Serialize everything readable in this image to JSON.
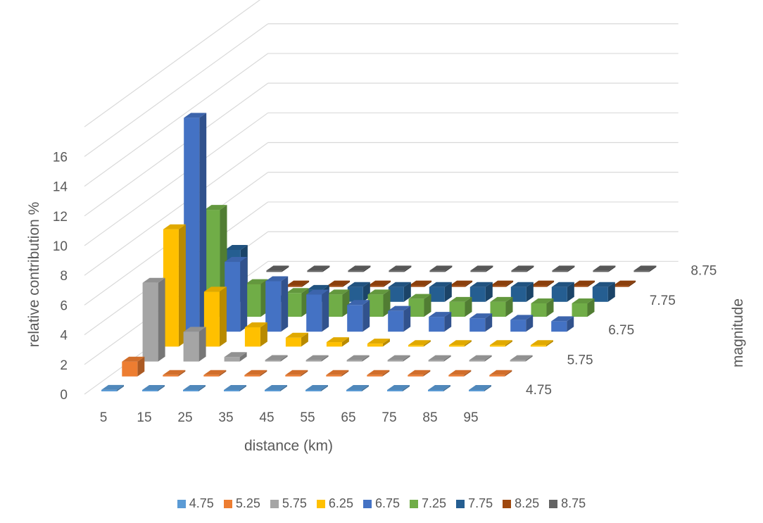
{
  "chart_data": {
    "type": "bar3d",
    "xlabel": "distance (km)",
    "ylabel": "relative contribution %",
    "zlabel": "magnitude",
    "x_categories": [
      "5",
      "15",
      "25",
      "35",
      "45",
      "55",
      "65",
      "75",
      "85",
      "95"
    ],
    "y_ticks": [
      "0",
      "2",
      "4",
      "6",
      "8",
      "10",
      "12",
      "14",
      "16"
    ],
    "ylim": [
      0,
      16
    ],
    "depth_tick_labels": [
      "4.75",
      "5.75",
      "6.75",
      "7.75",
      "8.75"
    ],
    "series": [
      {
        "name": "4.75",
        "color": "#5b9bd5",
        "values": [
          0.1,
          0.05,
          0.05,
          0.05,
          0.05,
          0.05,
          0.05,
          0.05,
          0.05,
          0.05
        ]
      },
      {
        "name": "5.25",
        "color": "#ed7d31",
        "values": [
          1.0,
          0.05,
          0.05,
          0.05,
          0.05,
          0.05,
          0.05,
          0.05,
          0.05,
          0.05
        ]
      },
      {
        "name": "5.75",
        "color": "#a5a5a5",
        "values": [
          5.3,
          2.0,
          0.3,
          0.1,
          0.05,
          0.05,
          0.05,
          0.05,
          0.05,
          0.05
        ]
      },
      {
        "name": "6.25",
        "color": "#ffc000",
        "values": [
          7.9,
          3.7,
          1.3,
          0.6,
          0.3,
          0.2,
          0.1,
          0.1,
          0.1,
          0.1
        ]
      },
      {
        "name": "6.75",
        "color": "#4472c4",
        "values": [
          14.4,
          4.7,
          3.4,
          2.5,
          1.8,
          1.4,
          1.0,
          0.9,
          0.8,
          0.7
        ]
      },
      {
        "name": "7.25",
        "color": "#70ad47",
        "values": [
          7.2,
          2.2,
          1.6,
          1.5,
          1.5,
          1.2,
          1.0,
          1.0,
          0.9,
          0.9
        ]
      },
      {
        "name": "7.75",
        "color": "#255e91",
        "values": [
          3.5,
          0.05,
          0.8,
          1.0,
          1.0,
          1.0,
          1.0,
          1.0,
          1.0,
          1.0
        ]
      },
      {
        "name": "8.25",
        "color": "#9e480e",
        "values": [
          0.05,
          0.05,
          0.05,
          0.05,
          0.05,
          0.05,
          0.05,
          0.05,
          0.05,
          0.05
        ]
      },
      {
        "name": "8.75",
        "color": "#636363",
        "values": [
          0.05,
          0.05,
          0.05,
          0.05,
          0.05,
          0.05,
          0.05,
          0.05,
          0.05,
          0.05
        ]
      }
    ],
    "grid": true,
    "legend_position": "bottom"
  }
}
